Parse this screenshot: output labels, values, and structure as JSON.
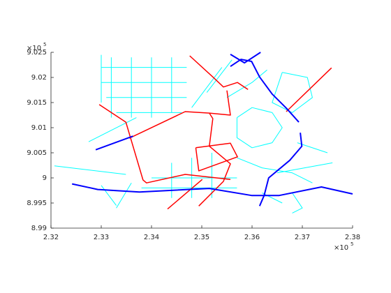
{
  "chart_data": {
    "type": "line",
    "xlim": [
      2.32,
      2.38
    ],
    "ylim": [
      8.99,
      9.025
    ],
    "xticks": [
      2.32,
      2.33,
      2.34,
      2.35,
      2.36,
      2.37,
      2.38
    ],
    "yticks": [
      8.99,
      8.995,
      9,
      9.005,
      9.01,
      9.015,
      9.02,
      9.025
    ],
    "x_multiplier": "×10",
    "x_exponent": "5",
    "y_multiplier": "×10",
    "y_exponent": "5",
    "series": [
      {
        "color": "#00ffff",
        "width": 1,
        "lines": [
          {
            "x": [
              2.3207,
              2.3349
            ],
            "y": [
              9.0024,
              9.0007
            ]
          },
          {
            "x": [
              2.3275,
              2.337
            ],
            "y": [
              9.0072,
              9.012
            ]
          },
          {
            "x": [
              2.33,
              2.347
            ],
            "y": [
              9.022,
              9.022
            ]
          },
          {
            "x": [
              2.33,
              2.347
            ],
            "y": [
              9.019,
              9.019
            ]
          },
          {
            "x": [
              2.331,
              2.347
            ],
            "y": [
              9.016,
              9.016
            ]
          },
          {
            "x": [
              2.333,
              2.346
            ],
            "y": [
              9.013,
              9.013
            ]
          },
          {
            "x": [
              2.332,
              2.332
            ],
            "y": [
              9.012,
              9.024
            ]
          },
          {
            "x": [
              2.336,
              2.336
            ],
            "y": [
              9.012,
              9.024
            ]
          },
          {
            "x": [
              2.34,
              2.34
            ],
            "y": [
              9.012,
              9.024
            ]
          },
          {
            "x": [
              2.344,
              2.344
            ],
            "y": [
              9.013,
              9.024
            ]
          },
          {
            "x": [
              2.366,
              2.371,
              2.372,
              2.368,
              2.364,
              2.366
            ],
            "y": [
              9.021,
              9.02,
              9.016,
              9.013,
              9.015,
              9.021
            ]
          },
          {
            "x": [
              2.357,
              2.36,
              2.364,
              2.366,
              2.364,
              2.36,
              2.357,
              2.357
            ],
            "y": [
              9.012,
              9.014,
              9.013,
              9.01,
              9.007,
              9.006,
              9.008,
              9.012
            ]
          },
          {
            "x": [
              2.34,
              2.357
            ],
            "y": [
              9.0,
              9.0
            ]
          },
          {
            "x": [
              2.338,
              2.357
            ],
            "y": [
              8.998,
              8.998
            ]
          },
          {
            "x": [
              2.344,
              2.344
            ],
            "y": [
              8.996,
              9.003
            ]
          },
          {
            "x": [
              2.348,
              2.348
            ],
            "y": [
              8.996,
              9.004
            ]
          },
          {
            "x": [
              2.352,
              2.352
            ],
            "y": [
              8.996,
              9.005
            ]
          },
          {
            "x": [
              2.365,
              2.376
            ],
            "y": [
              9.001,
              9.003
            ]
          },
          {
            "x": [
              2.369,
              2.375
            ],
            "y": [
              9.007,
              9.005
            ]
          },
          {
            "x": [
              2.362,
              2.366
            ],
            "y": [
              8.997,
              8.995
            ]
          },
          {
            "x": [
              2.351,
              2.356
            ],
            "y": [
              9.017,
              9.0235
            ]
          },
          {
            "x": [
              2.348,
              2.354
            ],
            "y": [
              9.014,
              9.022
            ]
          },
          {
            "x": [
              2.33,
              2.333
            ],
            "y": [
              8.9985,
              8.9945
            ]
          },
          {
            "x": [
              2.336,
              2.333
            ],
            "y": [
              8.999,
              8.994
            ]
          },
          {
            "x": [
              2.33,
              2.33
            ],
            "y": [
              9.0245,
              9.015
            ]
          },
          {
            "x": [
              2.357,
              2.362,
              2.368,
              2.372
            ],
            "y": [
              9.004,
              9.002,
              9.001,
              8.999
            ]
          },
          {
            "x": [
              2.355,
              2.36,
              2.363
            ],
            "y": [
              9.016,
              9.019,
              9.0215
            ]
          },
          {
            "x": [
              2.368,
              2.37,
              2.368
            ],
            "y": [
              8.997,
              8.994,
              8.993
            ]
          }
        ]
      },
      {
        "color": "#ff0000",
        "width": 1.5,
        "lines": [
          {
            "x": [
              2.3296,
              2.3349,
              2.3383,
              2.339,
              2.3467,
              2.3557
            ],
            "y": [
              9.0146,
              9.0111,
              8.9996,
              8.999,
              9.0007,
              8.9997
            ]
          },
          {
            "x": [
              2.3356,
              2.3467,
              2.3515,
              2.3522,
              2.3515,
              2.3557,
              2.3543,
              2.3494
            ],
            "y": [
              9.0079,
              9.0132,
              9.0129,
              9.0118,
              9.0063,
              9.0028,
              8.9993,
              8.9944
            ]
          },
          {
            "x": [
              2.3476,
              2.3522,
              2.3543,
              2.3571,
              2.3592
            ],
            "y": [
              9.0243,
              9.0201,
              9.0181,
              9.019,
              9.0176
            ]
          },
          {
            "x": [
              2.3515,
              2.3557,
              2.355
            ],
            "y": [
              9.0129,
              9.0125,
              9.0174
            ]
          },
          {
            "x": [
              2.3758,
              2.3668
            ],
            "y": [
              9.0219,
              9.0132
            ]
          },
          {
            "x": [
              2.3432,
              2.3501
            ],
            "y": [
              8.9938,
              8.9997
            ]
          },
          {
            "x": [
              2.3488,
              2.3557,
              2.3571,
              2.3494,
              2.3488
            ],
            "y": [
              9.006,
              9.0069,
              9.0042,
              9.0014,
              9.006
            ]
          }
        ]
      },
      {
        "color": "#0000ff",
        "width": 2,
        "lines": [
          {
            "x": [
              2.3242,
              2.3293,
              2.3376,
              2.3515,
              2.3599,
              2.3654,
              2.3738,
              2.38
            ],
            "y": [
              8.9988,
              8.9977,
              8.9972,
              8.9979,
              8.9965,
              8.9965,
              8.9982,
              8.9968
            ]
          },
          {
            "x": [
              2.3696,
              2.3699,
              2.3675,
              2.3633,
              2.3624,
              2.3615
            ],
            "y": [
              9.009,
              9.0063,
              9.0035,
              9.0,
              8.9965,
              8.9944
            ]
          },
          {
            "x": [
              2.3557,
              2.3578,
              2.3599,
              2.3615,
              2.364,
              2.3668,
              2.3693
            ],
            "y": [
              9.0222,
              9.0236,
              9.0232,
              9.0201,
              9.0167,
              9.0139,
              9.0111
            ]
          },
          {
            "x": [
              2.3557,
              2.3585,
              2.3617
            ],
            "y": [
              9.0246,
              9.0229,
              9.025
            ]
          },
          {
            "x": [
              2.3289,
              2.3363
            ],
            "y": [
              9.0056,
              9.0083
            ]
          }
        ]
      }
    ]
  }
}
